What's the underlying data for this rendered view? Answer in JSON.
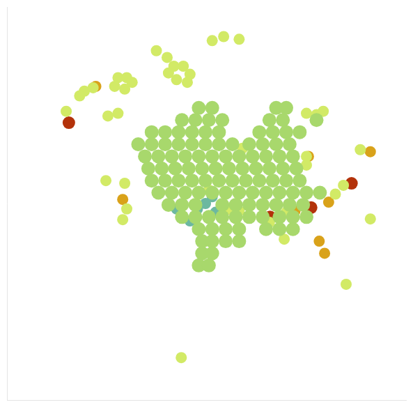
{
  "chart_data": {
    "type": "scatter",
    "xlim": [
      0,
      593
    ],
    "ylim": [
      0,
      584
    ],
    "grid": false,
    "tick_labels": false,
    "series": [
      {
        "color": "#a8d86c",
        "x": [
          285,
          305,
          400,
          415,
          260,
          280,
          300,
          320,
          390,
          410,
          460,
          215,
          235,
          255,
          275,
          295,
          315,
          375,
          395,
          415,
          435,
          195,
          215,
          235,
          255,
          275,
          295,
          315,
          335,
          360,
          380,
          400,
          420,
          205,
          225,
          245,
          265,
          285,
          305,
          325,
          345,
          365,
          385,
          405,
          425,
          210,
          230,
          250,
          270,
          290,
          310,
          330,
          350,
          370,
          390,
          410,
          430,
          215,
          235,
          255,
          275,
          295,
          315,
          335,
          355,
          375,
          395,
          415,
          435,
          225,
          245,
          265,
          285,
          305,
          325,
          345,
          365,
          385,
          405,
          425,
          445,
          465,
          240,
          260,
          280,
          320,
          340,
          360,
          380,
          400,
          420,
          440,
          260,
          280,
          300,
          320,
          340,
          360,
          380,
          405,
          425,
          445,
          285,
          305,
          325,
          345,
          385,
          405,
          425,
          290,
          305,
          325,
          345,
          290,
          305,
          285,
          300
        ],
        "values": [
          150,
          150,
          150,
          150,
          168,
          168,
          168,
          168,
          168,
          168,
          168,
          186,
          186,
          186,
          186,
          186,
          186,
          186,
          186,
          186,
          186,
          204,
          204,
          204,
          204,
          204,
          204,
          204,
          204,
          204,
          204,
          204,
          204,
          222,
          222,
          222,
          222,
          222,
          222,
          222,
          222,
          222,
          222,
          222,
          222,
          240,
          240,
          240,
          240,
          240,
          240,
          240,
          240,
          240,
          240,
          240,
          240,
          258,
          258,
          258,
          258,
          258,
          258,
          258,
          258,
          258,
          258,
          258,
          258,
          276,
          276,
          276,
          276,
          276,
          276,
          276,
          276,
          276,
          276,
          276,
          276,
          276,
          294,
          294,
          294,
          294,
          294,
          294,
          294,
          294,
          294,
          294,
          312,
          312,
          312,
          312,
          312,
          312,
          312,
          312,
          312,
          312,
          330,
          330,
          330,
          330,
          330,
          330,
          330,
          348,
          348,
          348,
          348,
          366,
          366,
          384,
          384
        ]
      },
      {
        "color": "#d2ea66",
        "x": [
          305,
          322,
          345,
          222,
          238,
          248,
          262,
          240,
          252,
          268,
          272,
          165,
          178,
          160,
          175,
          186,
          115,
          128,
          108,
          88,
          150,
          165,
          147,
          175,
          178,
          172,
          460,
          470,
          445,
          525,
          540,
          504,
          412,
          259,
          500,
          488,
          445,
          445,
          390,
          415,
          330,
          345,
          300,
          350
        ],
        "values": [
          50,
          44,
          48,
          65,
          75,
          88,
          88,
          98,
          108,
          112,
          100,
          105,
          105,
          118,
          122,
          112,
          125,
          120,
          132,
          155,
          162,
          158,
          258,
          262,
          300,
          316,
          160,
          155,
          158,
          212,
          315,
          412,
          345,
          521,
          265,
          278,
          222,
          235,
          320,
          305,
          300,
          303,
          272,
          210
        ]
      },
      {
        "color": "#6cb8a0",
        "x": [
          295,
          283,
          305,
          272,
          252,
          310
        ],
        "values": [
          292,
          300,
          282,
          318,
          300,
          305
        ]
      },
      {
        "color": "#d9a21a",
        "x": [
          448,
          330,
          478,
          540,
          464,
          472,
          132,
          172,
          428
        ],
        "values": [
          222,
          300,
          290,
          215,
          348,
          366,
          118,
          286,
          303
        ]
      },
      {
        "color": "#b3320a",
        "x": [
          92,
          391,
          452,
          512
        ],
        "values": [
          172,
          312,
          298,
          262
        ]
      }
    ]
  }
}
